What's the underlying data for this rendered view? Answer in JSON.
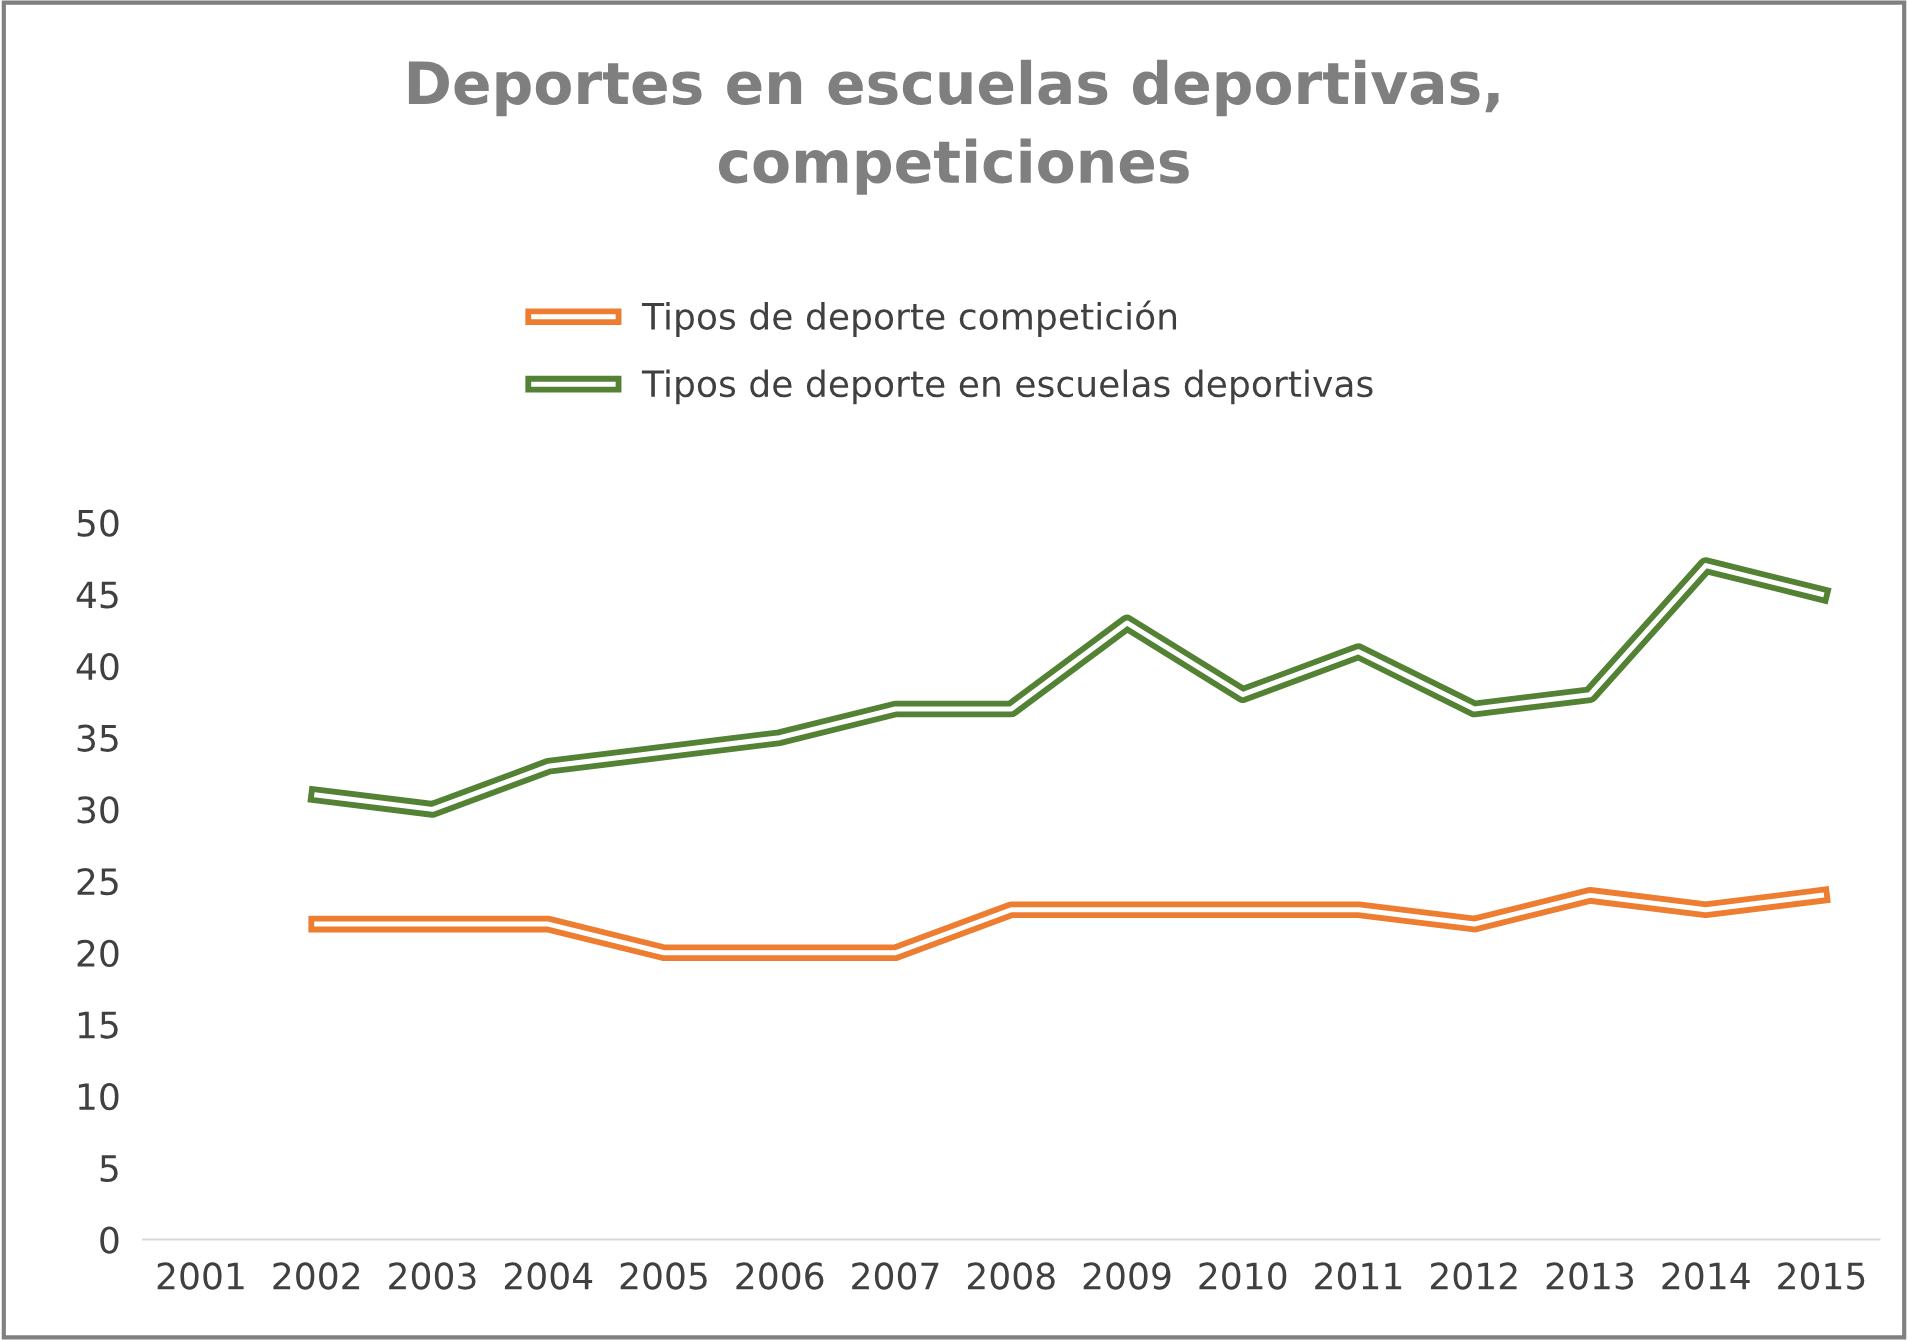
{
  "chart_data": {
    "type": "line",
    "title": "Deportes en escuelas deportivas,\ncompeticiones",
    "categories": [
      "2001",
      "2002",
      "2003",
      "2004",
      "2005",
      "2006",
      "2007",
      "2008",
      "2009",
      "2010",
      "2011",
      "2012",
      "2013",
      "2014",
      "2015"
    ],
    "series": [
      {
        "name": "Tipos de deporte competición",
        "color": "#ed7d31",
        "values": [
          null,
          22,
          22,
          22,
          20,
          20,
          20,
          23,
          23,
          23,
          23,
          22,
          24,
          23,
          24
        ]
      },
      {
        "name": "Tipos de deporte en escuelas deportivas",
        "color": "#548235",
        "values": [
          null,
          31,
          30,
          33,
          34,
          35,
          37,
          37,
          43,
          38,
          41,
          37,
          38,
          47,
          45
        ]
      }
    ],
    "ylim": [
      0,
      50
    ],
    "yticks": [
      0,
      5,
      10,
      15,
      20,
      25,
      30,
      35,
      40,
      45,
      50
    ],
    "grid": false,
    "legend": "top",
    "marker": "none",
    "line_style": "solid"
  }
}
